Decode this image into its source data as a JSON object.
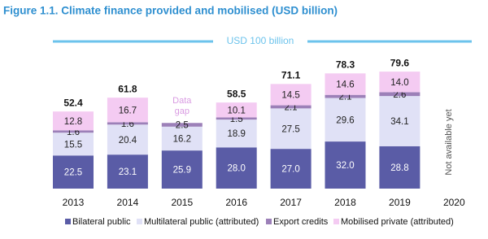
{
  "chart_data": {
    "type": "stacked_bar",
    "title": "Figure 1.1. Climate finance provided and mobilised (USD billion)",
    "categories": [
      "2013",
      "2014",
      "2015",
      "2016",
      "2017",
      "2018",
      "2019",
      "2020"
    ],
    "series": [
      {
        "name": "Bilateral public",
        "color": "#5a5ca6",
        "values": [
          22.5,
          23.1,
          25.9,
          28.0,
          27.0,
          32.0,
          28.8,
          null
        ],
        "value_labels": [
          "22.5",
          "23.1",
          "25.9",
          "28.0",
          "27.0",
          "32.0",
          "28.8",
          null
        ]
      },
      {
        "name": "Multilateral public (attributed)",
        "color": "#e0e1f6",
        "values": [
          15.5,
          20.4,
          16.2,
          18.9,
          27.5,
          29.6,
          34.1,
          null
        ],
        "value_labels": [
          "15.5",
          "20.4",
          "16.2",
          "18.9",
          "27.5",
          "29.6",
          "34.1",
          null
        ]
      },
      {
        "name": "Export credits",
        "color": "#9c80b8",
        "values": [
          1.6,
          1.6,
          2.5,
          1.5,
          2.1,
          2.1,
          2.6,
          null
        ],
        "value_labels": [
          "1.6",
          "1.6",
          "2.5",
          "1.5",
          "2.1",
          "2.1",
          "2.6",
          null
        ]
      },
      {
        "name": "Mobilised private (attributed)",
        "color": "#f4cbf2",
        "values": [
          12.8,
          16.7,
          null,
          10.1,
          14.5,
          14.6,
          14.0,
          null
        ],
        "value_labels": [
          "12.8",
          "16.7",
          null,
          "10.1",
          "14.5",
          "14.6",
          "14.0",
          null
        ]
      }
    ],
    "totals": [
      52.4,
      61.8,
      null,
      58.5,
      71.1,
      78.3,
      79.6,
      null
    ],
    "reference_line": {
      "value": 100,
      "label": "USD 100 billion",
      "color": "#6cc3ec"
    },
    "annotations": [
      {
        "category": "2015",
        "text": "Data gap",
        "color": "#d99be2"
      },
      {
        "category": "2020",
        "text": "Not available yet",
        "color": "#555555"
      }
    ],
    "legend": "bottom"
  }
}
